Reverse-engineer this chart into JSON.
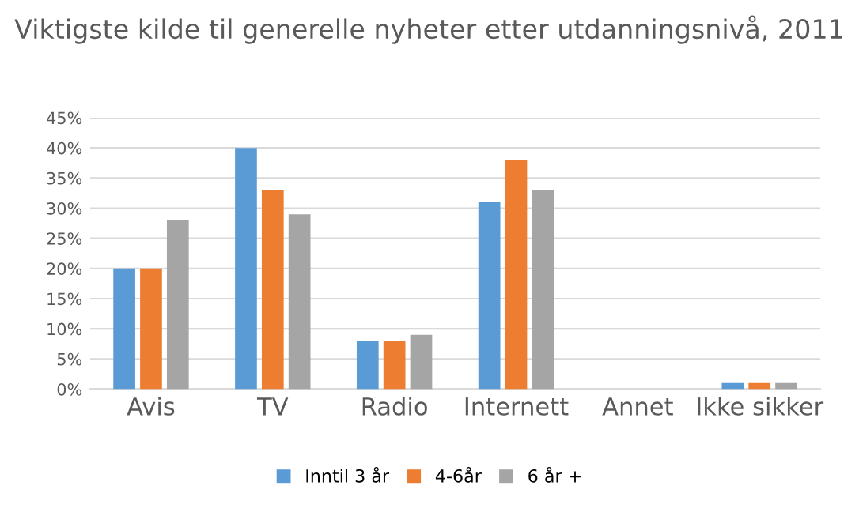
{
  "chart_data": {
    "type": "bar",
    "title": "Viktigste kilde til generelle nyheter etter utdanningsnivå, 2011",
    "categories": [
      "Avis",
      "TV",
      "Radio",
      "Internett",
      "Annet",
      "Ikke sikker"
    ],
    "series": [
      {
        "name": "Inntil 3 år",
        "color": "#5b9bd5",
        "values": [
          20,
          40,
          8,
          31,
          0,
          1
        ]
      },
      {
        "name": "4-6år",
        "color": "#ed7d31",
        "values": [
          20,
          33,
          8,
          38,
          0,
          1
        ]
      },
      {
        "name": "6 år +",
        "color": "#a5a5a5",
        "values": [
          28,
          29,
          9,
          33,
          0,
          1
        ]
      }
    ],
    "ylim": [
      0,
      45
    ],
    "yticks": [
      {
        "value": 0,
        "label": "0%"
      },
      {
        "value": 5,
        "label": "5%"
      },
      {
        "value": 10,
        "label": "10%"
      },
      {
        "value": 15,
        "label": "15%"
      },
      {
        "value": 20,
        "label": "20%"
      },
      {
        "value": 25,
        "label": "25%"
      },
      {
        "value": 30,
        "label": "30%"
      },
      {
        "value": 35,
        "label": "35%"
      },
      {
        "value": 40,
        "label": "40%"
      },
      {
        "value": 45,
        "label": "45%"
      }
    ],
    "grid": "y",
    "legend": "bottom"
  }
}
